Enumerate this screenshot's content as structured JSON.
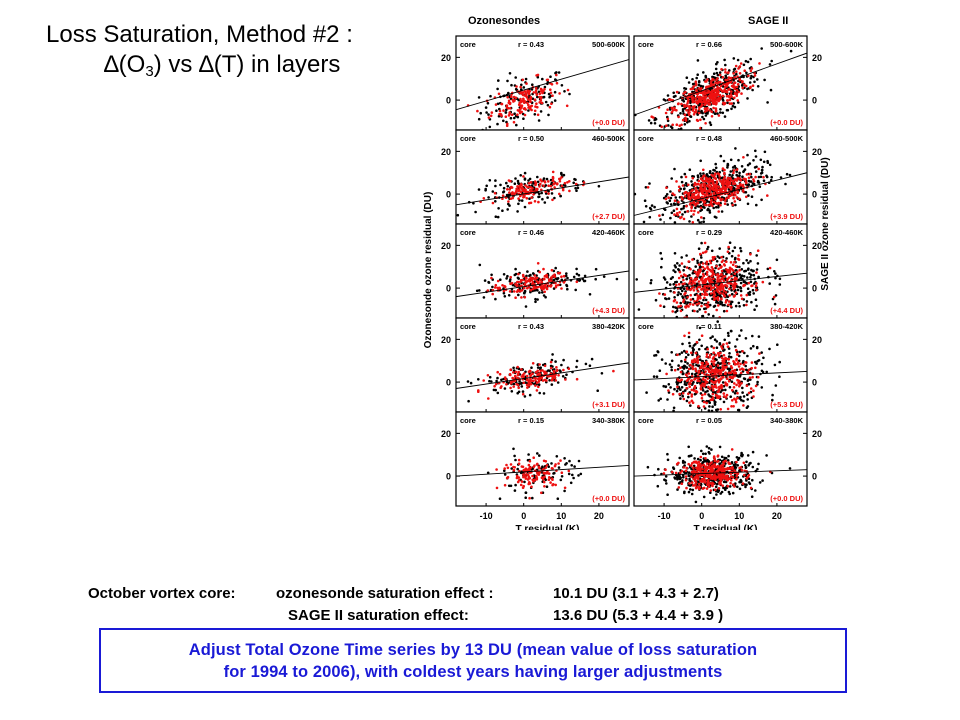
{
  "title": {
    "line1": "Loss Saturation, Method #2 :",
    "line2_prefix": "∆(O",
    "line2_sub": "3",
    "line2_suffix": ") vs ∆(T) in layers"
  },
  "summary": {
    "row1_label": "October vortex core:",
    "row1_desc": "ozonesonde saturation effect :",
    "row1_value": "10.1 DU (3.1 + 4.3 + 2.7)",
    "row2_desc": "SAGE II saturation effect:",
    "row2_value": "13.6 DU (5.3 + 4.4 + 3.9 )"
  },
  "callout": {
    "line1": "Adjust Total Ozone Time series by 13 DU (mean value of loss saturation",
    "line2": "for 1994 to 2006), with coldest years having larger adjustments"
  },
  "chart_data": {
    "type": "scatter",
    "columns": [
      "Ozonesondes",
      "SAGE II"
    ],
    "ylabel_left": "Ozonesonde ozone residual (DU)",
    "ylabel_right": "SAGE II ozone residual (DU)",
    "xlabel": "T residual (K)",
    "xlim": [
      -18,
      28
    ],
    "ylim": [
      -14,
      30
    ],
    "x_ticks": [
      -10,
      0,
      10,
      20
    ],
    "y_ticks": [
      0,
      20
    ],
    "series_colors": {
      "all": "#000000",
      "core": "#ee1111"
    },
    "panels": [
      {
        "column": "Ozonesondes",
        "layer": "500-600K",
        "tag": "core",
        "r": "r = 0.43",
        "effect": "(+0.0 DU)",
        "fit": [
          [
            -18,
            -4.5
          ],
          [
            28,
            19
          ]
        ],
        "cx": 0,
        "cy": 0,
        "sx": 5,
        "slope": 0.5,
        "noise": 5,
        "n_black": 120,
        "n_red": 150
      },
      {
        "column": "SAGE II",
        "layer": "500-600K",
        "tag": "core",
        "r": "r = 0.66",
        "effect": "(+0.0 DU)",
        "fit": [
          [
            -18,
            -7
          ],
          [
            28,
            22
          ]
        ],
        "cx": 2,
        "cy": 2,
        "sx": 6,
        "slope": 0.75,
        "noise": 5,
        "n_black": 380,
        "n_red": 360
      },
      {
        "column": "Ozonesondes",
        "layer": "460-500K",
        "tag": "core",
        "r": "r = 0.50",
        "effect": "(+2.7 DU)",
        "fit": [
          [
            -18,
            -5
          ],
          [
            28,
            8
          ]
        ],
        "cx": 2,
        "cy": 2,
        "sx": 6,
        "slope": 0.3,
        "noise": 3,
        "n_black": 140,
        "n_red": 130
      },
      {
        "column": "SAGE II",
        "layer": "460-500K",
        "tag": "core",
        "r": "r = 0.48",
        "effect": "(+3.9 DU)",
        "fit": [
          [
            -18,
            -10
          ],
          [
            28,
            10
          ]
        ],
        "cx": 3,
        "cy": 2,
        "sx": 6,
        "slope": 0.45,
        "noise": 5,
        "n_black": 420,
        "n_red": 360
      },
      {
        "column": "Ozonesondes",
        "layer": "420-460K",
        "tag": "core",
        "r": "r = 0.46",
        "effect": "(+4.3 DU)",
        "fit": [
          [
            -18,
            -4
          ],
          [
            28,
            8
          ]
        ],
        "cx": 2,
        "cy": 2,
        "sx": 6,
        "slope": 0.25,
        "noise": 3,
        "n_black": 150,
        "n_red": 140
      },
      {
        "column": "SAGE II",
        "layer": "420-460K",
        "tag": "core",
        "r": "r = 0.29",
        "effect": "(+4.4 DU)",
        "fit": [
          [
            -18,
            -2
          ],
          [
            28,
            7
          ]
        ],
        "cx": 3,
        "cy": 2,
        "sx": 6,
        "slope": 0.25,
        "noise": 7,
        "n_black": 420,
        "n_red": 340
      },
      {
        "column": "Ozonesondes",
        "layer": "380-420K",
        "tag": "core",
        "r": "r = 0.43",
        "effect": "(+3.1 DU)",
        "fit": [
          [
            -18,
            -3
          ],
          [
            28,
            9
          ]
        ],
        "cx": 2,
        "cy": 2,
        "sx": 6,
        "slope": 0.25,
        "noise": 3,
        "n_black": 140,
        "n_red": 140
      },
      {
        "column": "SAGE II",
        "layer": "380-420K",
        "tag": "core",
        "r": "r = 0.11",
        "effect": "(+5.3 DU)",
        "fit": [
          [
            -18,
            1
          ],
          [
            28,
            5
          ]
        ],
        "cx": 3,
        "cy": 3,
        "sx": 6,
        "slope": 0.1,
        "noise": 8,
        "n_black": 420,
        "n_red": 340
      },
      {
        "column": "Ozonesondes",
        "layer": "340-380K",
        "tag": "core",
        "r": "r = 0.15",
        "effect": "(+0.0 DU)",
        "fit": [
          [
            -18,
            0
          ],
          [
            28,
            5
          ]
        ],
        "cx": 3,
        "cy": 1,
        "sx": 5,
        "slope": 0.05,
        "noise": 4,
        "n_black": 90,
        "n_red": 120
      },
      {
        "column": "SAGE II",
        "layer": "340-380K",
        "tag": "core",
        "r": "r = 0.05",
        "effect": "(+0.0 DU)",
        "fit": [
          [
            -18,
            0
          ],
          [
            28,
            3
          ]
        ],
        "cx": 3,
        "cy": 1,
        "sx": 5,
        "slope": 0.05,
        "noise": 4,
        "n_black": 420,
        "n_red": 300
      }
    ]
  }
}
